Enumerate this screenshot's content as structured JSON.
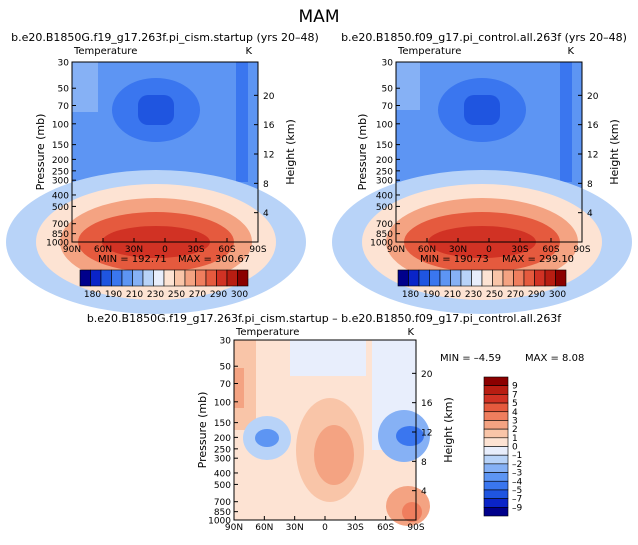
{
  "page_title": "MAM",
  "chart_data": [
    {
      "type": "heatmap",
      "id": "panel-left",
      "title": "b.e20.B1850G.f19_g17.263f.pi_cism.startup (yrs 20–48)",
      "left_label": "Temperature",
      "right_label": "K",
      "ylabel": "Pressure (mb)",
      "ylabel_right": "Height (km)",
      "xticks": [
        "90N",
        "60N",
        "30N",
        "0",
        "30S",
        "60S",
        "90S"
      ],
      "yticks": [
        "30",
        "50",
        "70",
        "100",
        "150",
        "200",
        "250",
        "300",
        "400",
        "500",
        "700",
        "850",
        "1000"
      ],
      "yticks_right": [
        "20",
        "16",
        "12",
        "8",
        "4"
      ],
      "ylim_mb": [
        1000,
        30
      ],
      "min_text": "MIN = 192.71",
      "max_text": "MAX = 300.67",
      "stats": {
        "min": 192.71,
        "max": 300.67
      },
      "colorbar": {
        "orientation": "horizontal",
        "labels": [
          "180",
          "190",
          "210",
          "230",
          "250",
          "270",
          "290",
          "300"
        ],
        "colors": [
          "#00008b",
          "#0a24c8",
          "#1f55e0",
          "#3a76ef",
          "#5d95f3",
          "#86b1f5",
          "#b8d3f8",
          "#e8eefc",
          "#fde3d3",
          "#f9c5a8",
          "#f4a382",
          "#ef7e5e",
          "#e55a3e",
          "#d13224",
          "#b81d12",
          "#8b0000"
        ]
      }
    },
    {
      "type": "heatmap",
      "id": "panel-right",
      "title": "b.e20.B1850.f09_g17.pi_control.all.263f (yrs 20–48)",
      "left_label": "Temperature",
      "right_label": "K",
      "ylabel": "Pressure (mb)",
      "ylabel_right": "Height (km)",
      "xticks": [
        "90N",
        "60N",
        "30N",
        "0",
        "30S",
        "60S",
        "90S"
      ],
      "yticks": [
        "30",
        "50",
        "70",
        "100",
        "150",
        "200",
        "250",
        "300",
        "400",
        "500",
        "700",
        "850",
        "1000"
      ],
      "yticks_right": [
        "20",
        "16",
        "12",
        "8",
        "4"
      ],
      "ylim_mb": [
        1000,
        30
      ],
      "min_text": "MIN = 190.73",
      "max_text": "MAX = 299.10",
      "stats": {
        "min": 190.73,
        "max": 299.1
      },
      "colorbar": {
        "orientation": "horizontal",
        "labels": [
          "180",
          "190",
          "210",
          "230",
          "250",
          "270",
          "290",
          "300"
        ],
        "colors": [
          "#00008b",
          "#0a24c8",
          "#1f55e0",
          "#3a76ef",
          "#5d95f3",
          "#86b1f5",
          "#b8d3f8",
          "#e8eefc",
          "#fde3d3",
          "#f9c5a8",
          "#f4a382",
          "#ef7e5e",
          "#e55a3e",
          "#d13224",
          "#b81d12",
          "#8b0000"
        ]
      }
    },
    {
      "type": "heatmap",
      "id": "panel-diff",
      "title": "b.e20.B1850G.f19_g17.263f.pi_cism.startup – b.e20.B1850.f09_g17.pi_control.all.263f",
      "left_label": "Temperature",
      "right_label": "K",
      "ylabel": "Pressure (mb)",
      "ylabel_right": "Height (km)",
      "xticks": [
        "90N",
        "60N",
        "30N",
        "0",
        "30S",
        "60S",
        "90S"
      ],
      "yticks": [
        "30",
        "50",
        "70",
        "100",
        "150",
        "200",
        "250",
        "300",
        "400",
        "500",
        "700",
        "850",
        "1000"
      ],
      "yticks_right": [
        "20",
        "16",
        "12",
        "8",
        "4"
      ],
      "ylim_mb": [
        1000,
        30
      ],
      "min_text": "MIN = –4.59",
      "max_text": "MAX =   8.08",
      "stats": {
        "min": -4.59,
        "max": 8.08
      },
      "colorbar": {
        "orientation": "vertical",
        "labels": [
          "9",
          "7",
          "5",
          "4",
          "3",
          "2",
          "1",
          "0",
          "–1",
          "–2",
          "–3",
          "–4",
          "–5",
          "–7",
          "–9"
        ],
        "colors": [
          "#8b0000",
          "#b81d12",
          "#d13224",
          "#e55a3e",
          "#ef7e5e",
          "#f4a382",
          "#f9c5a8",
          "#fde3d3",
          "#e8eefc",
          "#b8d3f8",
          "#86b1f5",
          "#5d95f3",
          "#3a76ef",
          "#1f55e0",
          "#0a24c8",
          "#00008b"
        ]
      }
    }
  ]
}
